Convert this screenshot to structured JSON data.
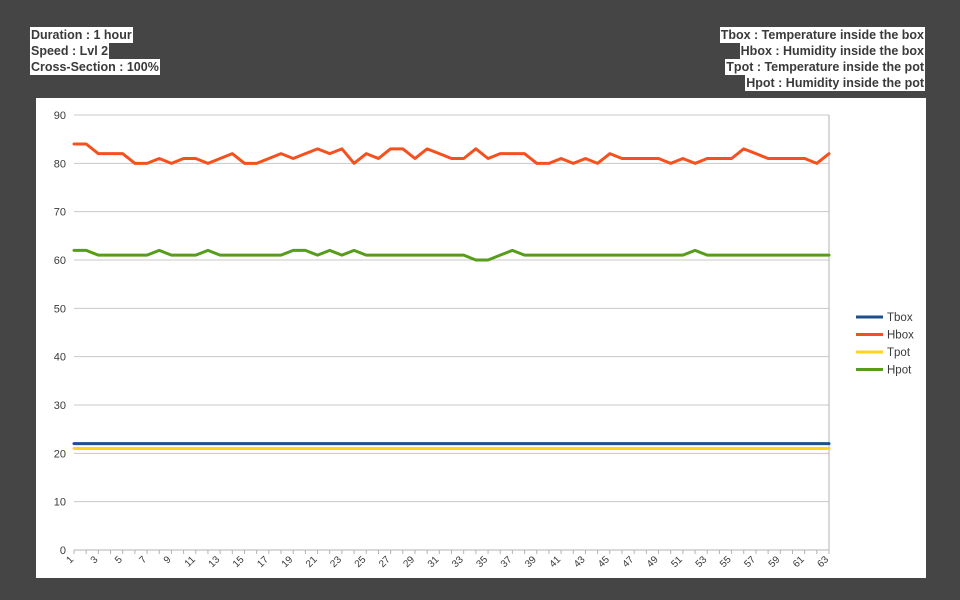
{
  "info_left": {
    "duration": "Duration : 1 hour",
    "speed": "Speed : Lvl  2",
    "cross_section": "Cross-Section :  100%"
  },
  "info_right": {
    "tbox_def": "Tbox : Temperature inside the box",
    "hbox_def": "Hbox : Humidity inside the box",
    "tpot_def": "Tpot : Temperature inside the pot",
    "hpot_def": "Hpot : Humidity inside the pot"
  },
  "chart_data": {
    "type": "line",
    "title": "",
    "xlabel": "",
    "ylabel": "",
    "x": [
      1,
      2,
      3,
      4,
      5,
      6,
      7,
      8,
      9,
      10,
      11,
      12,
      13,
      14,
      15,
      16,
      17,
      18,
      19,
      20,
      21,
      22,
      23,
      24,
      25,
      26,
      27,
      28,
      29,
      30,
      31,
      32,
      33,
      34,
      35,
      36,
      37,
      38,
      39,
      40,
      41,
      42,
      43,
      44,
      45,
      46,
      47,
      48,
      49,
      50,
      51,
      52,
      53,
      54,
      55,
      56,
      57,
      58,
      59,
      60,
      61,
      62,
      63
    ],
    "x_tick_labels": [
      "1",
      "3",
      "5",
      "7",
      "9",
      "11",
      "13",
      "15",
      "17",
      "19",
      "21",
      "23",
      "25",
      "27",
      "29",
      "31",
      "33",
      "35",
      "37",
      "39",
      "41",
      "43",
      "45",
      "47",
      "49",
      "51",
      "53",
      "55",
      "57",
      "59",
      "61",
      "63"
    ],
    "ylim": [
      0,
      90
    ],
    "y_ticks": [
      0,
      10,
      20,
      30,
      40,
      50,
      60,
      70,
      80,
      90
    ],
    "grid": true,
    "legend_position": "right",
    "series": [
      {
        "name": "Tbox",
        "color": "#1f4e8c",
        "values": [
          22,
          22,
          22,
          22,
          22,
          22,
          22,
          22,
          22,
          22,
          22,
          22,
          22,
          22,
          22,
          22,
          22,
          22,
          22,
          22,
          22,
          22,
          22,
          22,
          22,
          22,
          22,
          22,
          22,
          22,
          22,
          22,
          22,
          22,
          22,
          22,
          22,
          22,
          22,
          22,
          22,
          22,
          22,
          22,
          22,
          22,
          22,
          22,
          22,
          22,
          22,
          22,
          22,
          22,
          22,
          22,
          22,
          22,
          22,
          22,
          22,
          22,
          22
        ]
      },
      {
        "name": "Hbox",
        "color": "#f4511e",
        "values": [
          84,
          84,
          82,
          82,
          82,
          80,
          80,
          81,
          80,
          81,
          81,
          80,
          81,
          82,
          80,
          80,
          81,
          82,
          81,
          82,
          83,
          82,
          83,
          80,
          82,
          81,
          83,
          83,
          81,
          83,
          82,
          81,
          81,
          83,
          81,
          82,
          82,
          82,
          80,
          80,
          81,
          80,
          81,
          80,
          82,
          81,
          81,
          81,
          81,
          80,
          81,
          80,
          81,
          81,
          81,
          83,
          82,
          81,
          81,
          81,
          81,
          80,
          82
        ]
      },
      {
        "name": "Tpot",
        "color": "#ffd320",
        "values": [
          21,
          21,
          21,
          21,
          21,
          21,
          21,
          21,
          21,
          21,
          21,
          21,
          21,
          21,
          21,
          21,
          21,
          21,
          21,
          21,
          21,
          21,
          21,
          21,
          21,
          21,
          21,
          21,
          21,
          21,
          21,
          21,
          21,
          21,
          21,
          21,
          21,
          21,
          21,
          21,
          21,
          21,
          21,
          21,
          21,
          21,
          21,
          21,
          21,
          21,
          21,
          21,
          21,
          21,
          21,
          21,
          21,
          21,
          21,
          21,
          21,
          21,
          21
        ]
      },
      {
        "name": "Hpot",
        "color": "#579d1c",
        "values": [
          62,
          62,
          61,
          61,
          61,
          61,
          61,
          62,
          61,
          61,
          61,
          62,
          61,
          61,
          61,
          61,
          61,
          61,
          62,
          62,
          61,
          62,
          61,
          62,
          61,
          61,
          61,
          61,
          61,
          61,
          61,
          61,
          61,
          60,
          60,
          61,
          62,
          61,
          61,
          61,
          61,
          61,
          61,
          61,
          61,
          61,
          61,
          61,
          61,
          61,
          61,
          62,
          61,
          61,
          61,
          61,
          61,
          61,
          61,
          61,
          61,
          61,
          61
        ]
      }
    ]
  }
}
